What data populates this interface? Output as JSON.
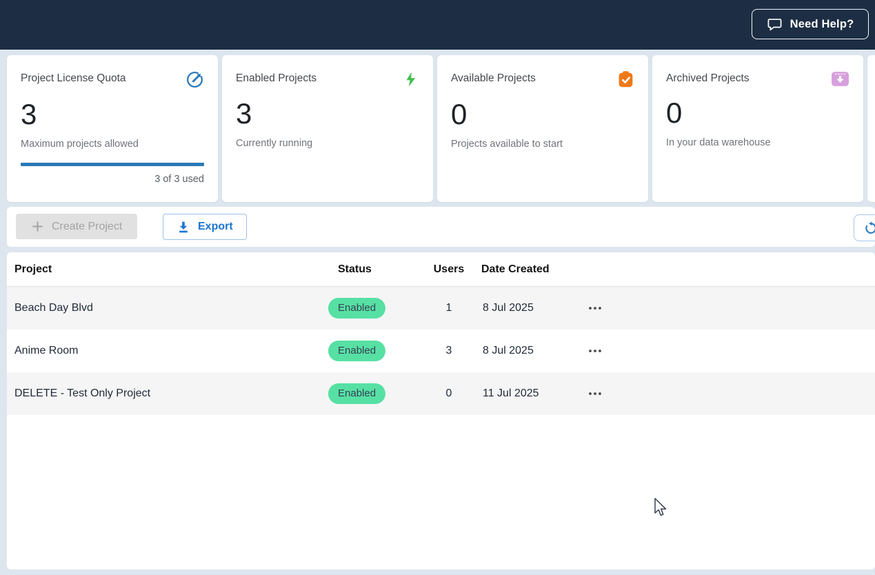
{
  "topbar": {
    "help_label": "Need Help?"
  },
  "cards": [
    {
      "title": "Project License Quota",
      "icon": "gauge-icon",
      "value": "3",
      "subtitle": "Maximum projects allowed",
      "progress": {
        "percent": 100,
        "label": "3 of 3 used"
      }
    },
    {
      "title": "Enabled Projects",
      "icon": "lightning-bolt-icon",
      "value": "3",
      "subtitle": "Currently running"
    },
    {
      "title": "Available Projects",
      "icon": "clipboard-check-icon",
      "value": "0",
      "subtitle": "Projects available to start"
    },
    {
      "title": "Archived Projects",
      "icon": "archive-icon",
      "value": "0",
      "subtitle": "In your data warehouse"
    }
  ],
  "toolbar": {
    "create_label": "Create Project",
    "export_label": "Export",
    "refresh_icon": "refresh-icon"
  },
  "table": {
    "columns": [
      "Project",
      "Status",
      "Users",
      "Date Created"
    ],
    "rows": [
      {
        "project": "Beach Day Blvd",
        "status": "Enabled",
        "users": "1",
        "date_created": "8 Jul 2025"
      },
      {
        "project": "Anime Room",
        "status": "Enabled",
        "users": "3",
        "date_created": "8 Jul 2025"
      },
      {
        "project": "DELETE - Test Only Project",
        "status": "Enabled",
        "users": "0",
        "date_created": "11 Jul 2025"
      }
    ]
  },
  "colors": {
    "topbar_bg": "#1d2e44",
    "page_bg": "#dde6ef",
    "accent_blue": "#2a79b8",
    "export_blue": "#1b76cf",
    "bolt_green": "#3fbf4e",
    "clipboard_orange": "#ef7918",
    "archive_lilac": "#d79fdd",
    "badge_green": "#57e0a3",
    "row_stripe": "#f5f5f5"
  }
}
